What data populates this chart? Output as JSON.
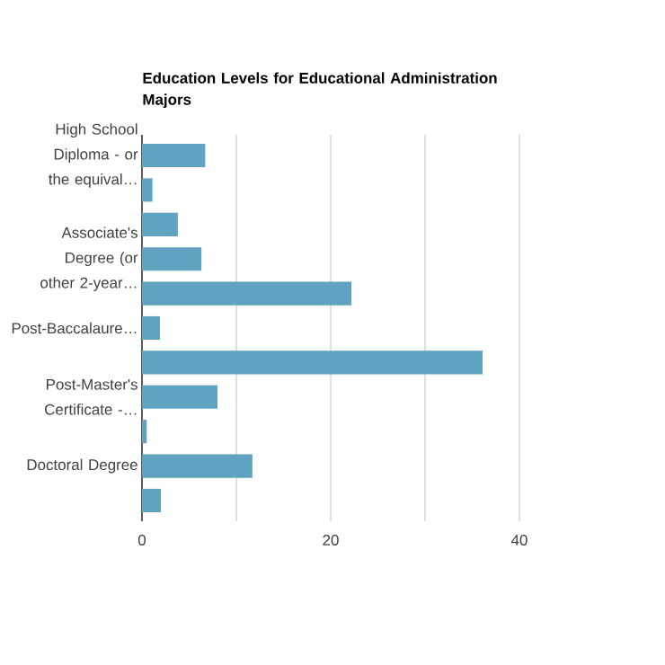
{
  "chart_data": {
    "type": "bar",
    "orientation": "horizontal",
    "title": "Education Levels for Educational Administration Majors",
    "categories": [
      "High School Diploma - or the equival…",
      null,
      null,
      "Associate's Degree (or other 2-year…",
      null,
      "Post-Baccalaure…",
      null,
      "Post-Master's Certificate -…",
      null,
      "Doctoral Degree",
      null
    ],
    "values": [
      6.7,
      1.1,
      3.8,
      6.3,
      22.2,
      1.9,
      36.1,
      8.0,
      0.5,
      11.7,
      2.0
    ],
    "color": "#5fa3c0",
    "xlim": [
      0,
      40
    ],
    "xticks": [
      0,
      {
        "value": 10,
        "label": null
      },
      20,
      {
        "value": 30,
        "label": null
      },
      40
    ],
    "grid": "x"
  }
}
